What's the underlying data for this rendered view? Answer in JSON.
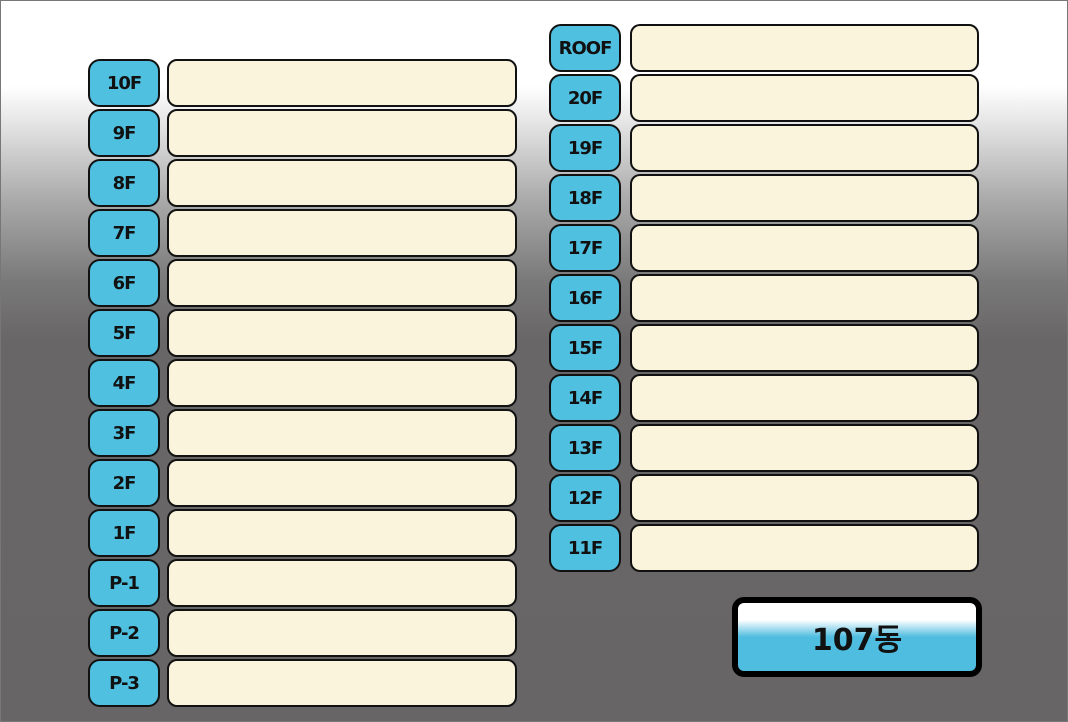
{
  "left_floors": [
    "10F",
    "9F",
    "8F",
    "7F",
    "6F",
    "5F",
    "4F",
    "3F",
    "2F",
    "1F",
    "P-1",
    "P-2",
    "P-3"
  ],
  "right_floors": [
    "ROOF",
    "20F",
    "19F",
    "18F",
    "17F",
    "16F",
    "15F",
    "14F",
    "13F",
    "12F",
    "11F"
  ],
  "building_button": {
    "label": "107동"
  },
  "colors": {
    "label_bg": "#4fc0e0",
    "field_bg": "#faf4dc",
    "background_bottom": "#676566"
  }
}
